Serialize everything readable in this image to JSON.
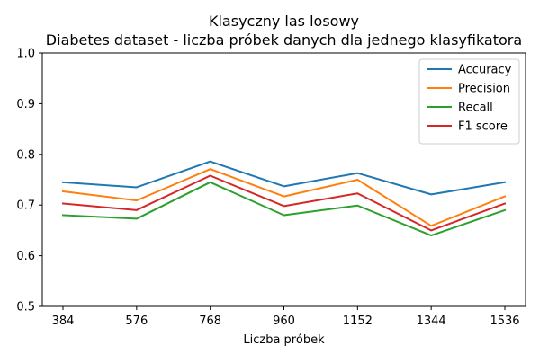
{
  "chart_data": {
    "type": "line",
    "title": "Klasyczny las losowy",
    "subtitle": "Diabetes dataset - liczba próbek danych dla jednego klasyfikatora",
    "xlabel": "Liczba próbek",
    "ylabel": "",
    "categories": [
      "384",
      "576",
      "768",
      "960",
      "1152",
      "1344",
      "1536"
    ],
    "ylim": [
      0.5,
      1.0
    ],
    "yticks": [
      "0.5",
      "0.6",
      "0.7",
      "0.8",
      "0.9",
      "1.0"
    ],
    "grid": false,
    "legend_position": "top-right",
    "series": [
      {
        "name": "Accuracy",
        "color": "#1f77b4",
        "values": [
          0.745,
          0.735,
          0.786,
          0.737,
          0.763,
          0.721,
          0.745
        ]
      },
      {
        "name": "Precision",
        "color": "#ff7f0e",
        "values": [
          0.727,
          0.709,
          0.771,
          0.717,
          0.75,
          0.659,
          0.717
        ]
      },
      {
        "name": "Recall",
        "color": "#2ca02c",
        "values": [
          0.68,
          0.673,
          0.745,
          0.68,
          0.699,
          0.64,
          0.69
        ]
      },
      {
        "name": "F1 score",
        "color": "#d62728",
        "values": [
          0.703,
          0.69,
          0.758,
          0.698,
          0.723,
          0.65,
          0.703
        ]
      }
    ]
  }
}
